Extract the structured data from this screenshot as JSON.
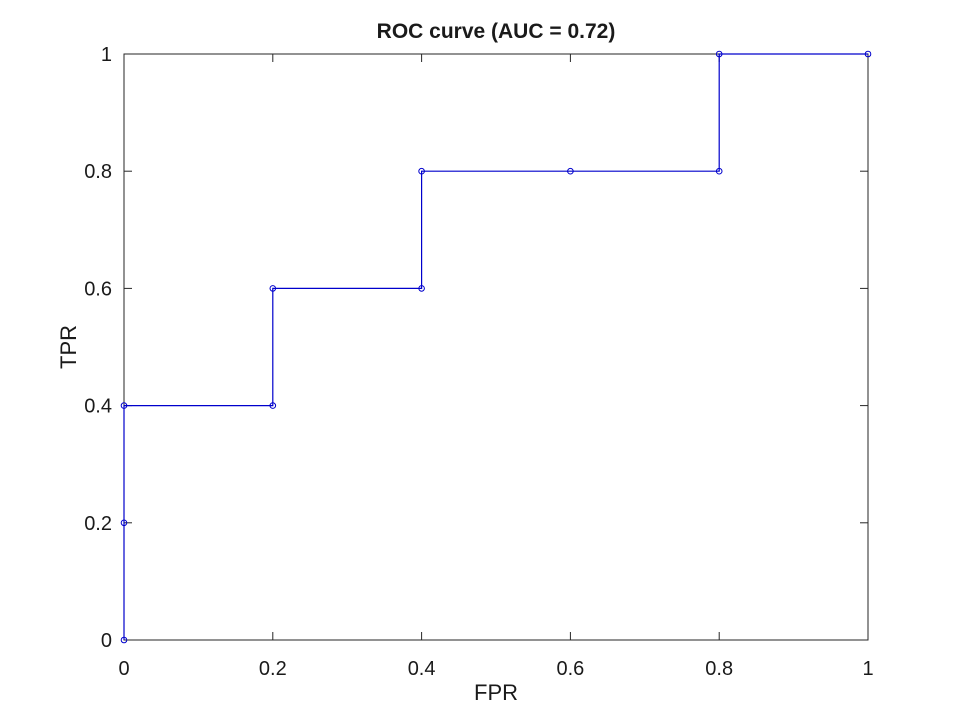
{
  "chart_data": {
    "type": "line",
    "title": "ROC curve (AUC = 0.72)",
    "xlabel": "FPR",
    "ylabel": "TPR",
    "xlim": [
      0,
      1
    ],
    "ylim": [
      0,
      1
    ],
    "xticks": [
      "0",
      "0.2",
      "0.4",
      "0.6",
      "0.8",
      "1"
    ],
    "yticks": [
      "0",
      "0.2",
      "0.4",
      "0.6",
      "0.8",
      "1"
    ],
    "grid": false,
    "line_style": "stairs",
    "marker": "circle",
    "series_color": "#0000cc",
    "series": [
      {
        "x": [
          0,
          0,
          0,
          0.2,
          0.2,
          0.4,
          0.4,
          0.6,
          0.8,
          0.8,
          1
        ],
        "y": [
          0,
          0.2,
          0.4,
          0.4,
          0.6,
          0.6,
          0.8,
          0.8,
          0.8,
          1,
          1
        ]
      }
    ]
  }
}
